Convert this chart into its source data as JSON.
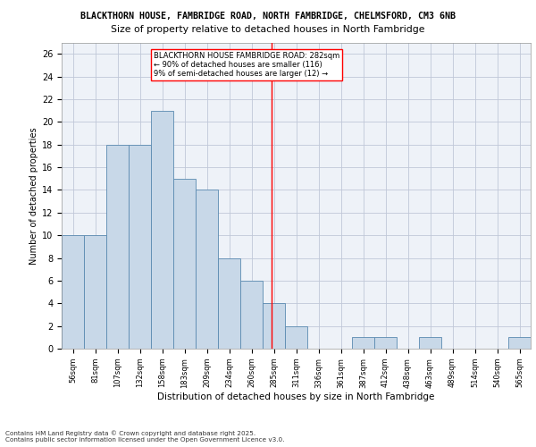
{
  "title_line1": "BLACKTHORN HOUSE, FAMBRIDGE ROAD, NORTH FAMBRIDGE, CHELMSFORD, CM3 6NB",
  "title_line2": "Size of property relative to detached houses in North Fambridge",
  "xlabel": "Distribution of detached houses by size in North Fambridge",
  "ylabel": "Number of detached properties",
  "bin_labels": [
    "56sqm",
    "81sqm",
    "107sqm",
    "132sqm",
    "158sqm",
    "183sqm",
    "209sqm",
    "234sqm",
    "260sqm",
    "285sqm",
    "311sqm",
    "336sqm",
    "361sqm",
    "387sqm",
    "412sqm",
    "438sqm",
    "463sqm",
    "489sqm",
    "514sqm",
    "540sqm",
    "565sqm"
  ],
  "bar_values": [
    10,
    10,
    18,
    18,
    21,
    15,
    14,
    8,
    6,
    4,
    2,
    0,
    0,
    1,
    1,
    0,
    1,
    0,
    0,
    0,
    1
  ],
  "bar_color": "#c8d8e8",
  "bar_edge_color": "#5a8ab0",
  "grid_color": "#c0c8d8",
  "bg_color": "#eef2f8",
  "vline_color": "red",
  "annotation_title": "BLACKTHORN HOUSE FAMBRIDGE ROAD: 282sqm",
  "annotation_line2": "← 90% of detached houses are smaller (116)",
  "annotation_line3": "9% of semi-detached houses are larger (12) →",
  "annotation_box_color": "white",
  "annotation_edge_color": "red",
  "ylim": [
    0,
    27
  ],
  "yticks": [
    0,
    2,
    4,
    6,
    8,
    10,
    12,
    14,
    16,
    18,
    20,
    22,
    24,
    26
  ],
  "footer_line1": "Contains HM Land Registry data © Crown copyright and database right 2025.",
  "footer_line2": "Contains public sector information licensed under the Open Government Licence v3.0.",
  "vline_pos": 8.88
}
